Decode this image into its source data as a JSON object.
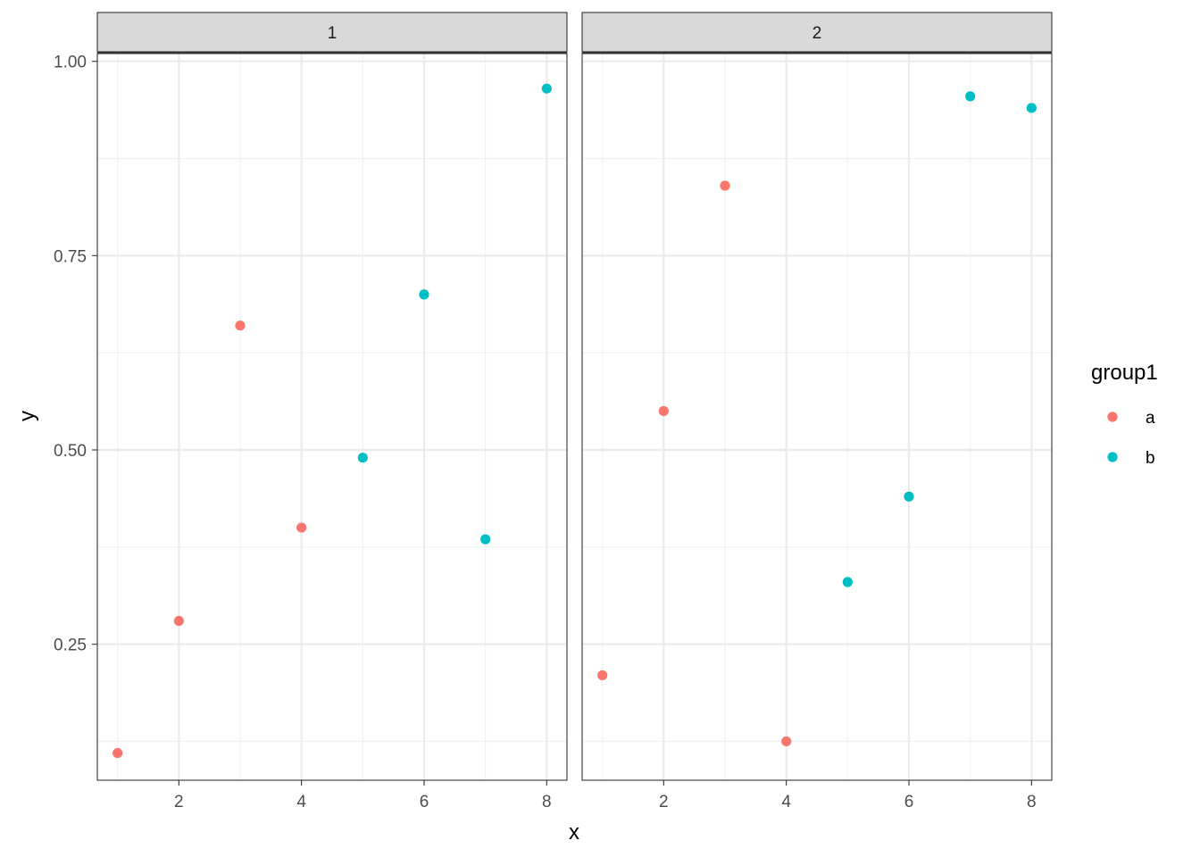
{
  "chart_data": {
    "type": "scatter",
    "xlabel": "x",
    "ylabel": "y",
    "xlim": [
      0.67,
      8.33
    ],
    "ylim": [
      0.075,
      1.01
    ],
    "x_ticks": [
      2,
      4,
      6,
      8
    ],
    "y_ticks": [
      0.25,
      0.5,
      0.75,
      1.0
    ],
    "y_tick_labels": [
      "0.25",
      "0.50",
      "0.75",
      "1.00"
    ],
    "grid": true,
    "legend": {
      "title": "group1",
      "position": "right",
      "entries": [
        {
          "label": "a",
          "color": "#F8766D"
        },
        {
          "label": "b",
          "color": "#00BFC4"
        }
      ]
    },
    "facets": [
      {
        "label": "1",
        "series": [
          {
            "name": "a",
            "x": [
              1,
              2,
              3,
              4
            ],
            "y": [
              0.11,
              0.28,
              0.66,
              0.4
            ]
          },
          {
            "name": "b",
            "x": [
              5,
              6,
              7,
              8
            ],
            "y": [
              0.49,
              0.7,
              0.385,
              0.965
            ]
          }
        ]
      },
      {
        "label": "2",
        "series": [
          {
            "name": "a",
            "x": [
              1,
              2,
              3,
              4
            ],
            "y": [
              0.21,
              0.55,
              0.84,
              0.125
            ]
          },
          {
            "name": "b",
            "x": [
              5,
              6,
              7,
              8
            ],
            "y": [
              0.33,
              0.44,
              0.955,
              0.94
            ]
          }
        ]
      }
    ]
  }
}
